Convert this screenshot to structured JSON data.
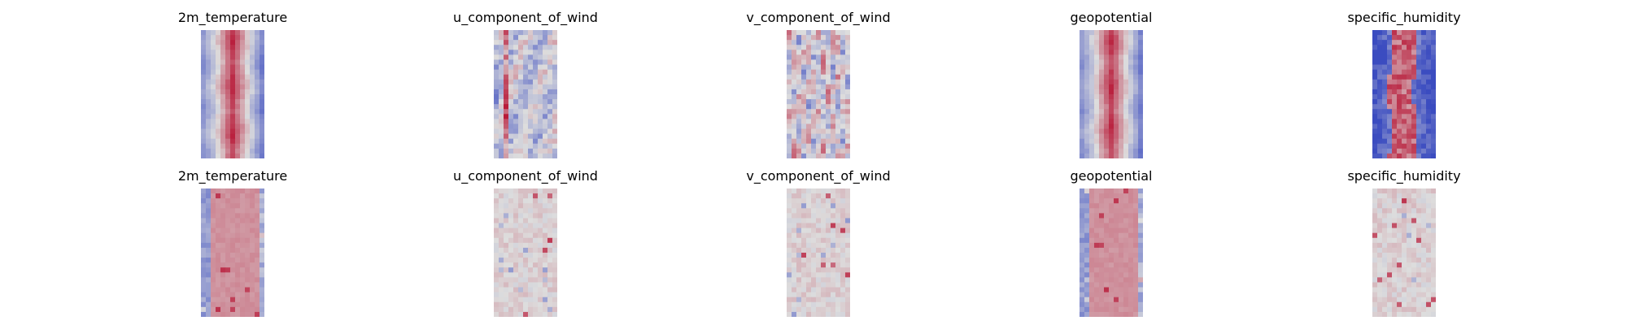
{
  "figure": {
    "rows": [
      {
        "panels": [
          {
            "title": "2m_temperature",
            "style": "band"
          },
          {
            "title": "u_component_of_wind",
            "style": "jet"
          },
          {
            "title": "v_component_of_wind",
            "style": "eddies"
          },
          {
            "title": "geopotential",
            "style": "band"
          },
          {
            "title": "specific_humidity",
            "style": "streak"
          }
        ]
      },
      {
        "panels": [
          {
            "title": "2m_temperature",
            "style": "diffband"
          },
          {
            "title": "u_component_of_wind",
            "style": "diffnoise"
          },
          {
            "title": "v_component_of_wind",
            "style": "diffnoise"
          },
          {
            "title": "geopotential",
            "style": "diffband"
          },
          {
            "title": "specific_humidity",
            "style": "diffnoise"
          }
        ]
      }
    ]
  },
  "chart_data": {
    "type": "heatmap",
    "colormap": "coolwarm",
    "colormap_stops": [
      "#3b4cc0",
      "#dddddd",
      "#b40426"
    ],
    "axes_visible": false,
    "grid": false,
    "panels": [
      {
        "row": 1,
        "col": 1,
        "title": "2m_temperature"
      },
      {
        "row": 1,
        "col": 2,
        "title": "u_component_of_wind"
      },
      {
        "row": 1,
        "col": 3,
        "title": "v_component_of_wind"
      },
      {
        "row": 1,
        "col": 4,
        "title": "geopotential"
      },
      {
        "row": 1,
        "col": 5,
        "title": "specific_humidity"
      },
      {
        "row": 2,
        "col": 1,
        "title": "2m_temperature"
      },
      {
        "row": 2,
        "col": 2,
        "title": "u_component_of_wind"
      },
      {
        "row": 2,
        "col": 3,
        "title": "v_component_of_wind"
      },
      {
        "row": 2,
        "col": 4,
        "title": "geopotential"
      },
      {
        "row": 2,
        "col": 5,
        "title": "specific_humidity"
      }
    ]
  }
}
